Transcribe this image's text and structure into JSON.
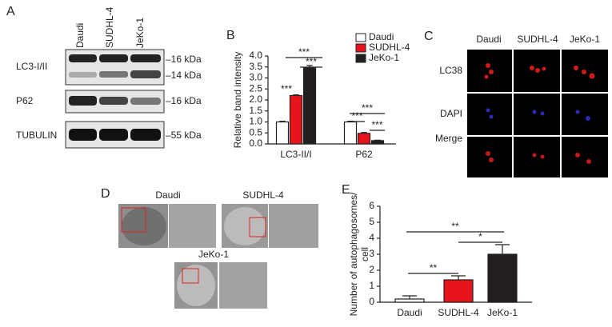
{
  "panel_a": {
    "label": "A",
    "columns": [
      "Daudi",
      "SUDHL-4",
      "JeKo-1"
    ],
    "rows": [
      "LC3-I/II",
      "P62",
      "TUBULIN"
    ],
    "markers": [
      "–16 kDa",
      "–14 kDa",
      "–16 kDa",
      "–55 kDa"
    ]
  },
  "panel_b": {
    "label": "B"
  },
  "panel_c": {
    "label": "C",
    "columns": [
      "Daudi",
      "SUDHL-4",
      "JeKo-1"
    ],
    "rows": [
      "LC38",
      "DAPI",
      "Merge"
    ]
  },
  "panel_d": {
    "label": "D",
    "images": [
      "Daudi",
      "SUDHL-4",
      "JeKo-1"
    ]
  },
  "panel_e": {
    "label": "E"
  },
  "chart_data": [
    {
      "type": "bar",
      "ylabel": "Relative band intensity",
      "categories": [
        "LC3-II/I",
        "P62"
      ],
      "series": [
        {
          "name": "Daudi",
          "color": "#ffffff",
          "values": [
            1.0,
            1.0
          ],
          "errors": [
            0.03,
            0.03
          ]
        },
        {
          "name": "SUDHL-4",
          "color": "#e8141c",
          "values": [
            2.2,
            0.48
          ],
          "errors": [
            0.03,
            0.04
          ]
        },
        {
          "name": "JeKo-1",
          "color": "#231f20",
          "values": [
            3.45,
            0.15
          ],
          "errors": [
            0.12,
            0.02
          ]
        }
      ],
      "ylim": [
        0,
        4.0
      ],
      "yticks": [
        {
          "value": 0,
          "label": "0.0"
        },
        0.5,
        {
          "value": 1,
          "label": "1.0"
        },
        1.5,
        {
          "value": 2,
          "label": "2.0"
        },
        2.5,
        {
          "value": 3,
          "label": "3.0"
        },
        3.5,
        {
          "value": 4,
          "label": "4.0"
        }
      ],
      "legend": "top-right",
      "annotations": [
        "***",
        "***",
        "***",
        "***",
        "***",
        "***"
      ]
    },
    {
      "type": "bar",
      "ylabel": [
        "Number of autophagosomes/",
        "cell"
      ],
      "categories": [
        "Daudi",
        "SUDHL-4",
        "JeKo-1"
      ],
      "values": [
        0.2,
        1.4,
        3.0
      ],
      "errors": [
        0.2,
        0.25,
        0.6
      ],
      "colors": [
        "#ffffff",
        "#e8141c",
        "#231f20"
      ],
      "ylim": [
        0,
        6
      ],
      "yticks": [
        0,
        1,
        2,
        3,
        4,
        5,
        6
      ],
      "annotations": [
        "**",
        "*",
        "**"
      ]
    }
  ]
}
